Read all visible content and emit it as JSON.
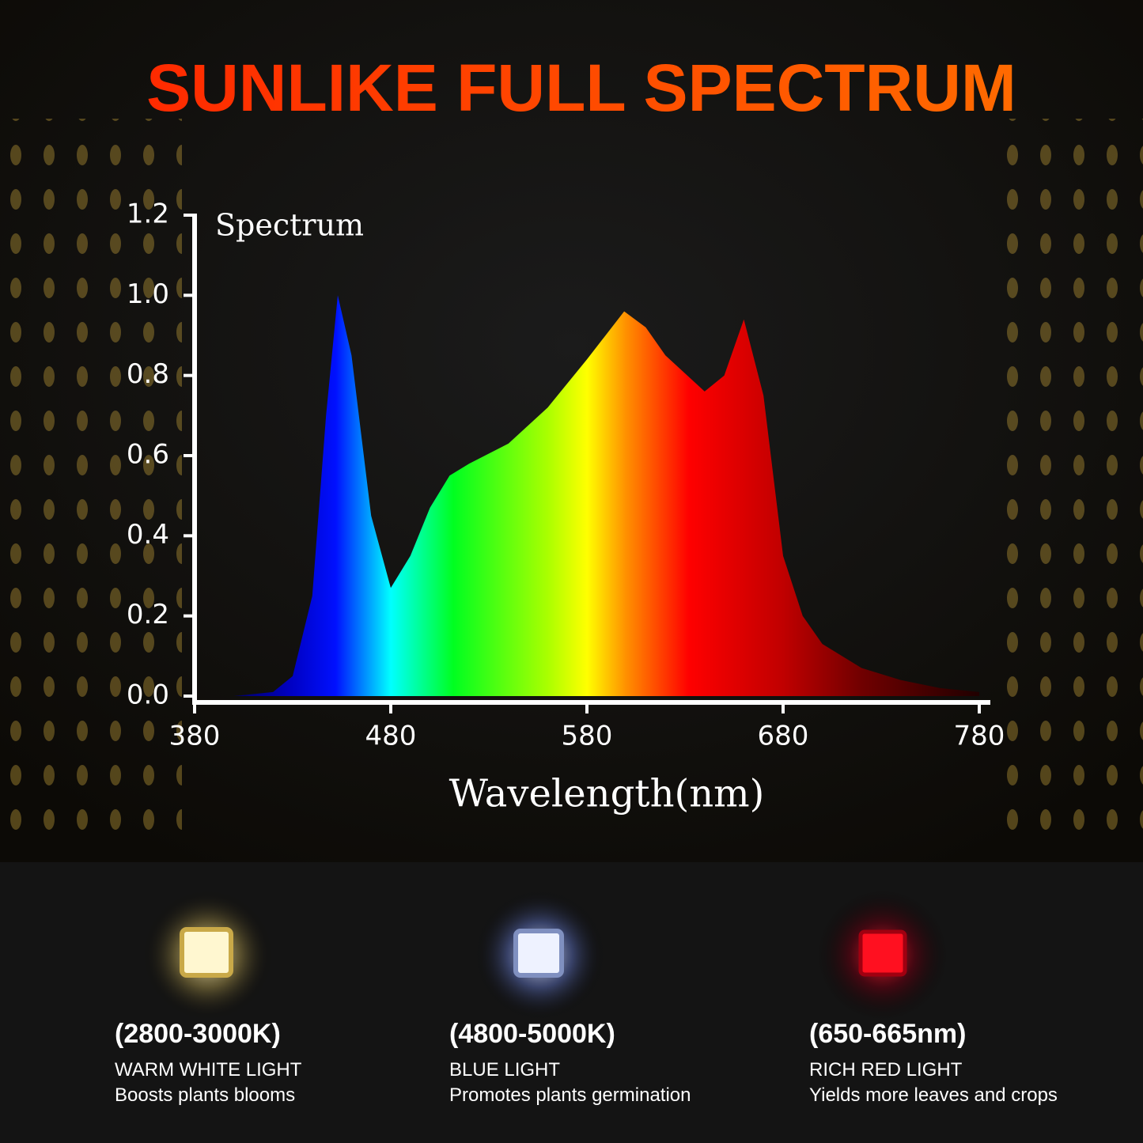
{
  "chart_data": {
    "type": "area",
    "title": "SUNLIKE FULL SPECTRUM",
    "annotation": "Spectrum",
    "x_label": "Wavelength(nm)",
    "x": [
      380,
      400,
      420,
      430,
      440,
      447,
      453,
      460,
      470,
      480,
      490,
      500,
      510,
      520,
      540,
      560,
      580,
      599,
      610,
      620,
      640,
      650,
      660,
      670,
      680,
      690,
      700,
      720,
      740,
      760,
      780
    ],
    "values": [
      0.0,
      0.0,
      0.01,
      0.05,
      0.25,
      0.7,
      1.0,
      0.85,
      0.45,
      0.27,
      0.35,
      0.47,
      0.55,
      0.58,
      0.63,
      0.72,
      0.84,
      0.96,
      0.92,
      0.85,
      0.76,
      0.8,
      0.94,
      0.75,
      0.35,
      0.2,
      0.13,
      0.07,
      0.04,
      0.02,
      0.01
    ],
    "xlim": [
      380,
      780
    ],
    "xticks": [
      380,
      480,
      580,
      680,
      780
    ],
    "ylim": [
      0,
      1.2
    ],
    "yticks": [
      {
        "value": 0,
        "label": "0.0"
      },
      0.2,
      0.4,
      0.6,
      0.8,
      {
        "value": 1,
        "label": "1.0"
      },
      1.2
    ]
  },
  "features": [
    {
      "range": "(2800-3000K)",
      "name": "WARM WHITE LIGHT",
      "description": "Boosts plants blooms"
    },
    {
      "range": "(4800-5000K)",
      "name": "BLUE LIGHT",
      "description": "Promotes plants germination"
    },
    {
      "range": "(650-665nm)",
      "name": "RICH RED LIGHT",
      "description": "Yields more leaves and crops"
    }
  ]
}
